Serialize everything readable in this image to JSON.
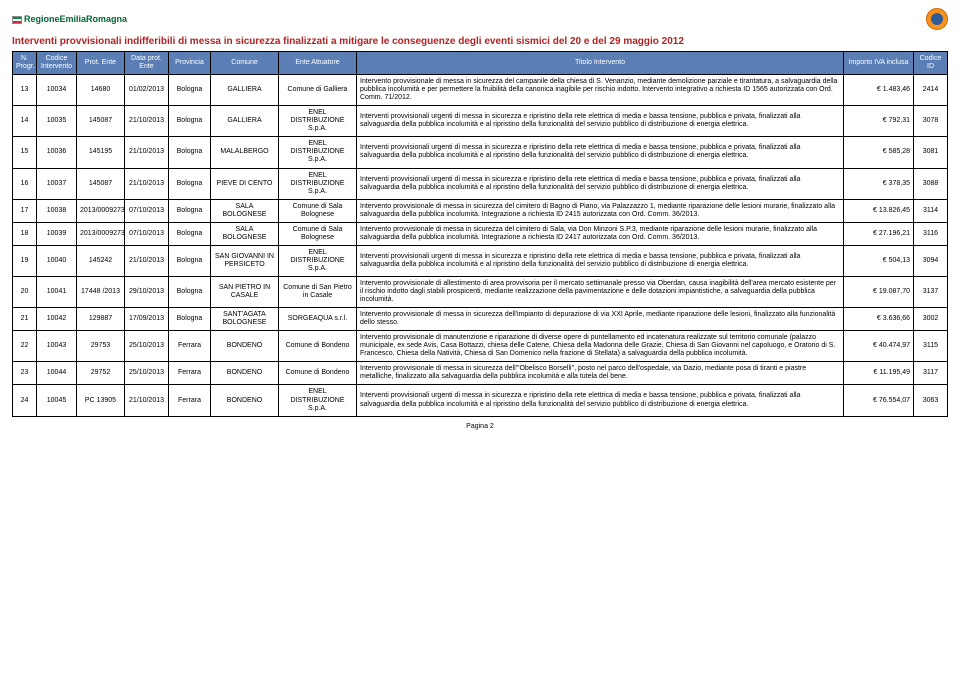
{
  "header": {
    "region_label": "RegioneEmiliaRomagna",
    "title": "Interventi provvisionali indifferibili di messa in sicurezza finalizzati a mitigare le conseguenze degli eventi sismici del 20 e del 29 maggio 2012"
  },
  "columns": [
    "N. Progr.",
    "Codice Intervento",
    "Prot. Ente",
    "Data prot. Ente",
    "Provincia",
    "Comune",
    "Ente Attuatore",
    "Titolo Intervento",
    "Importo IVA inclusa",
    "Codice ID"
  ],
  "rows": [
    {
      "progr": "13",
      "codice": "10034",
      "prot": "14680",
      "data": "01/02/2013",
      "prov": "Bologna",
      "comune": "GALLIERA",
      "ente": "Comune di Galliera",
      "titolo": "Intervento provvisionale di messa in sicurezza del campanile della chiesa di S. Venanzio, mediante demolizione parziale e tirantatura, a salvaguardia della pubblica incolumità e per permettere la fruibilità della canonica inagibile per rischio indotto. Intervento integrativo a richiesta ID 1565 autorizzata con Ord. Comm. 71/2012.",
      "importo": "€        1.483,46",
      "id": "2414"
    },
    {
      "progr": "14",
      "codice": "10035",
      "prot": "145087",
      "data": "21/10/2013",
      "prov": "Bologna",
      "comune": "GALLIERA",
      "ente": "ENEL DISTRIBUZIONE S.p.A.",
      "titolo": "Interventi provvisionali urgenti di messa in sicurezza e ripristino della rete elettrica di media e bassa tensione, pubblica e privata, finalizzati alla salvaguardia della pubblica incolumità e al ripristino della funzionalità del servizio pubblico di distribuzione di energia elettrica.",
      "importo": "€           792,31",
      "id": "3078"
    },
    {
      "progr": "15",
      "codice": "10036",
      "prot": "145195",
      "data": "21/10/2013",
      "prov": "Bologna",
      "comune": "MALALBERGO",
      "ente": "ENEL DISTRIBUZIONE S.p.A.",
      "titolo": "Interventi provvisionali urgenti di messa in sicurezza e ripristino della rete elettrica di media e bassa tensione, pubblica e privata, finalizzati alla salvaguardia della pubblica incolumità e al ripristino della funzionalità del servizio pubblico di distribuzione di energia elettrica.",
      "importo": "€           585,28",
      "id": "3081"
    },
    {
      "progr": "16",
      "codice": "10037",
      "prot": "145087",
      "data": "21/10/2013",
      "prov": "Bologna",
      "comune": "PIEVE DI CENTO",
      "ente": "ENEL DISTRIBUZIONE S.p.A.",
      "titolo": "Interventi provvisionali urgenti di messa in sicurezza e ripristino della rete elettrica di media e bassa tensione, pubblica e privata, finalizzati alla salvaguardia della pubblica incolumità e al ripristino della funzionalità del servizio pubblico di distribuzione di energia elettrica.",
      "importo": "€           378,35",
      "id": "3088"
    },
    {
      "progr": "17",
      "codice": "10038",
      "prot": "2013/0009273",
      "data": "07/10/2013",
      "prov": "Bologna",
      "comune": "SALA BOLOGNESE",
      "ente": "Comune di Sala Bolognese",
      "titolo": "Intervento provvisionale di messa in sicurezza del cimitero di Bagno di Piano, via Palazzazzo 1, mediante riparazione delle lesioni murarie, finalizzato alla salvaguardia della pubblica incolumità. Integrazione a richiesta ID 2415 autorizzata con Ord. Comm. 36/2013.",
      "importo": "€      13.826,45",
      "id": "3114"
    },
    {
      "progr": "18",
      "codice": "10039",
      "prot": "2013/0009273",
      "data": "07/10/2013",
      "prov": "Bologna",
      "comune": "SALA BOLOGNESE",
      "ente": "Comune di Sala Bolognese",
      "titolo": "Intervento provvisionale di messa in sicurezza del cimitero di Sala, via Don Minzoni S.P.3, mediante riparazione delle lesioni murarie, finalizzato alla salvaguardia della pubblica incolumità. Integrazione a richiesta ID 2417 autorizzata con Ord. Comm. 36/2013.",
      "importo": "€      27.196,21",
      "id": "3116"
    },
    {
      "progr": "19",
      "codice": "10040",
      "prot": "145242",
      "data": "21/10/2013",
      "prov": "Bologna",
      "comune": "SAN GIOVANNI IN PERSICETO",
      "ente": "ENEL DISTRIBUZIONE S.p.A.",
      "titolo": "Interventi provvisionali urgenti di messa in sicurezza e ripristino della rete elettrica di media e bassa tensione, pubblica e privata, finalizzati alla salvaguardia della pubblica incolumità e al ripristino della funzionalità del servizio pubblico di distribuzione di energia elettrica.",
      "importo": "€           504,13",
      "id": "3094"
    },
    {
      "progr": "20",
      "codice": "10041",
      "prot": "17448 /2013",
      "data": "29/10/2013",
      "prov": "Bologna",
      "comune": "SAN PIETRO IN CASALE",
      "ente": "Comune di San Pietro in Casale",
      "titolo": "Intervento provvisionale di allestimento di area provvisoria per il mercato settimanale presso via Oberdan, causa inagibilità dell'area mercato esistente per il rischio indotto dagli stabili prospicenti, mediante realizzazione della pavimentazione e delle dotazioni impiantistiche, a salvaguardia della pubblica incolumità.",
      "importo": "€      19.087,70",
      "id": "3137"
    },
    {
      "progr": "21",
      "codice": "10042",
      "prot": "129887",
      "data": "17/09/2013",
      "prov": "Bologna",
      "comune": "SANT'AGATA BOLOGNESE",
      "ente": "SORGEAQUA s.r.l.",
      "titolo": "Intervento provvisionale di messa in sicurezza dell'impianto di depurazione di via XXI Aprile, mediante riparazione delle lesioni, finalizzato alla funzionalità dello stesso.",
      "importo": "€        3.636,66",
      "id": "3002"
    },
    {
      "progr": "22",
      "codice": "10043",
      "prot": "29753",
      "data": "25/10/2013",
      "prov": "Ferrara",
      "comune": "BONDENO",
      "ente": "Comune di Bondeno",
      "titolo": "Intervento provvisionale di manutenzione e riparazione di diverse opere di puntellamento ed incatenatura realizzate sul territorio comunale (palazzo municipale, ex sede Avis, Casa Bottazzi, chiesa delle Catene, Chiesa della Madonna delle Grazie, Chiesa di San Giovanni nel capoluogo, e Oratorio di S. Francesco, Chiesa della Natività, Chiesa di San Domenico nella frazione di Stellata) a salvaguardia della pubblica incolumità.",
      "importo": "€      40.474,97",
      "id": "3115"
    },
    {
      "progr": "23",
      "codice": "10044",
      "prot": "29752",
      "data": "25/10/2013",
      "prov": "Ferrara",
      "comune": "BONDENO",
      "ente": "Comune di Bondeno",
      "titolo": "Intervento provvisionale di messa in sicurezza dell'\"Obelisco Borselli\", posto nel parco dell'ospedale, via Dazio, mediante posa di tiranti e piastre metalliche, finalizzato alla salvaguardia della pubblica incolumità e alla tutela del bene.",
      "importo": "€      11.195,49",
      "id": "3117"
    },
    {
      "progr": "24",
      "codice": "10045",
      "prot": "PC 13905",
      "data": "21/10/2013",
      "prov": "Ferrara",
      "comune": "BONDENO",
      "ente": "ENEL DISTRIBUZIONE S.p.A.",
      "titolo": "Interventi provvisionali urgenti di messa in sicurezza e ripristino della rete elettrica di media e bassa tensione, pubblica e privata, finalizzati alla salvaguardia della pubblica incolumità e al ripristino della funzionalità del servizio pubblico di distribuzione di energia elettrica.",
      "importo": "€      76.554,07",
      "id": "3063"
    }
  ],
  "footer": {
    "page_label": "Pagina 2"
  }
}
